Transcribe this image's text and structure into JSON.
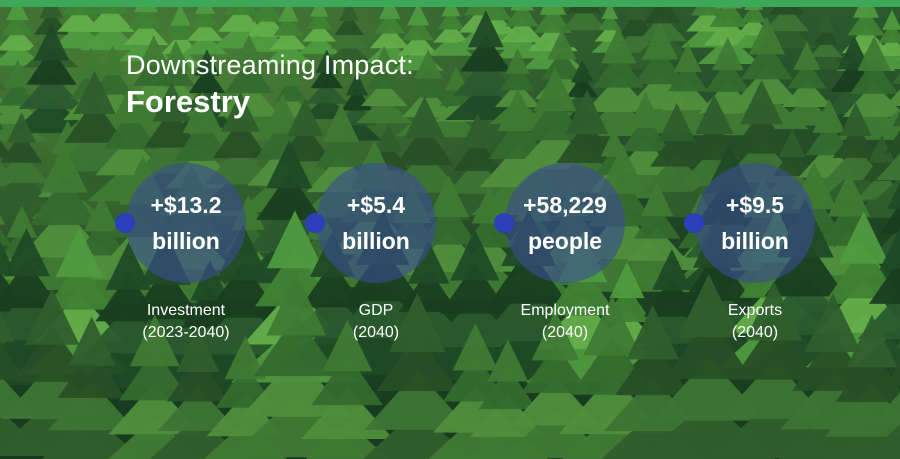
{
  "title": {
    "line1": "Downstreaming Impact:",
    "line2": "Forestry"
  },
  "stats": [
    {
      "value": "+$13.2",
      "unit": "billion",
      "label": "Investment",
      "period": "(2023-2040)"
    },
    {
      "value": "+$5.4",
      "unit": "billion",
      "label": "GDP",
      "period": "(2040)"
    },
    {
      "value": "+58,229",
      "unit": "people",
      "label": "Employment",
      "period": "(2040)"
    },
    {
      "value": "+$9.5",
      "unit": "billion",
      "label": "Exports",
      "period": "(2040)"
    }
  ],
  "colors": {
    "accent_bar": "#3ea85a",
    "circle_fill": "#3a4e92",
    "dot": "#2a3fb8"
  }
}
